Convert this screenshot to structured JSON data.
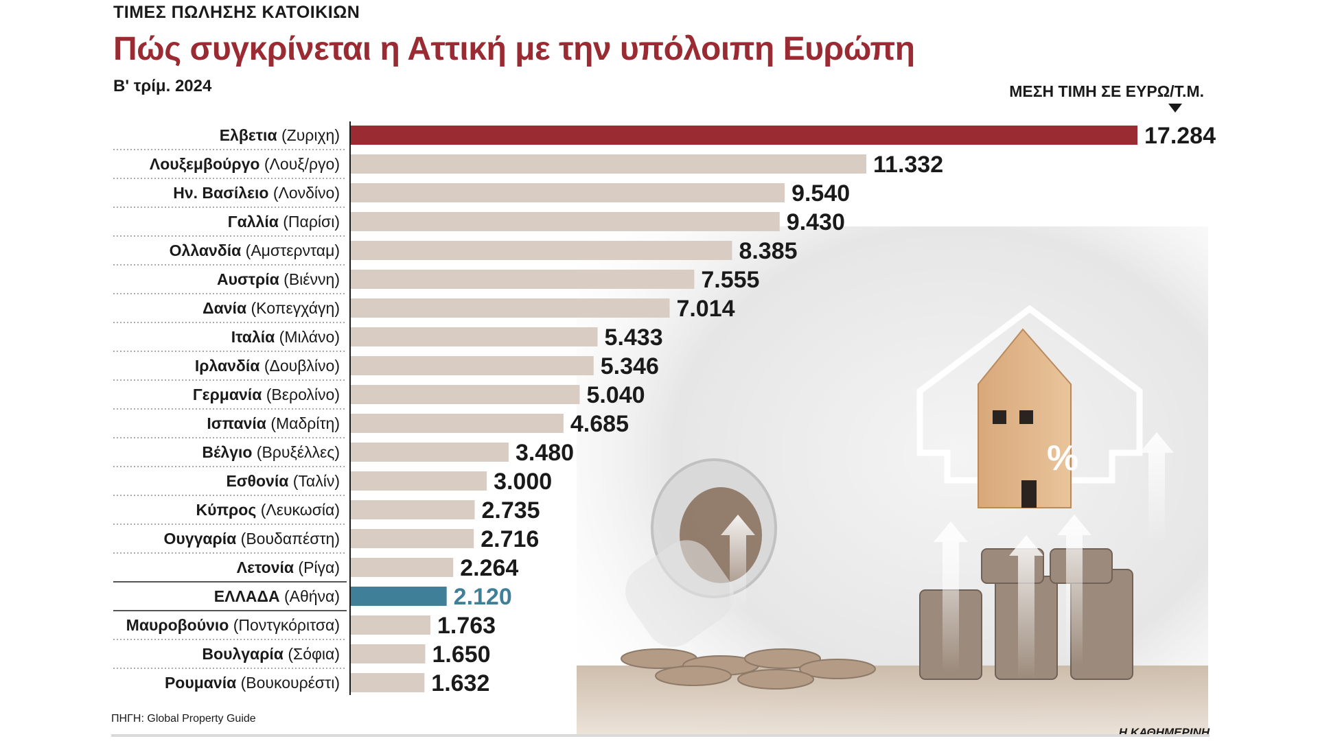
{
  "header": {
    "kicker": "ΤΙΜΕΣ ΠΩΛΗΣΗΣ ΚΑΤΟΙΚΙΩΝ",
    "title": "Πώς συγκρίνεται η Αττική με την υπόλοιπη Ευρώπη",
    "subtitle": "Β' τρίμ. 2024",
    "unit_label": "ΜΕΣΗ ΤΙΜΗ ΣΕ ΕΥΡΩ/Τ.Μ."
  },
  "footer": {
    "source": "ΠΗΓΗ: Global Property Guide",
    "brand": "Η ΚΑΘΗΜΕΡΙΝΗ"
  },
  "colors": {
    "title": "#9a2b32",
    "bar_default": "#d9cdc3",
    "bar_top": "#9a2b32",
    "bar_greece": "#3f7f98",
    "value_greece": "#3f7f98"
  },
  "chart_data": {
    "type": "bar",
    "orientation": "horizontal",
    "title": "Πώς συγκρίνεται η Αττική με την υπόλοιπη Ευρώπη",
    "unit": "ΜΕΣΗ ΤΙΜΗ ΣΕ ΕΥΡΩ/Τ.Μ.",
    "xlim": [
      0,
      17284
    ],
    "grid": false,
    "categories": [
      {
        "country": "Ελβετια",
        "city": "(Ζυριχη)"
      },
      {
        "country": "Λουξεμβούργο",
        "city": "(Λουξ/ργο)"
      },
      {
        "country": "Ην. Βασίλειο",
        "city": "(Λονδίνο)"
      },
      {
        "country": "Γαλλία",
        "city": "(Παρίσι)"
      },
      {
        "country": "Ολλανδία",
        "city": "(Αμστερνταμ)"
      },
      {
        "country": "Αυστρία",
        "city": "(Βιέννη)"
      },
      {
        "country": "Δανία",
        "city": "(Κοπεγχάγη)"
      },
      {
        "country": "Ιταλία",
        "city": "(Μιλάνο)"
      },
      {
        "country": "Ιρλανδία",
        "city": "(Δουβλίνο)"
      },
      {
        "country": "Γερμανία",
        "city": "(Βερολίνο)"
      },
      {
        "country": "Ισπανία",
        "city": "(Μαδρίτη)"
      },
      {
        "country": "Βέλγιο",
        "city": "(Βρυξέλλες)"
      },
      {
        "country": "Εσθονία",
        "city": "(Ταλίν)"
      },
      {
        "country": "Κύπρος",
        "city": "(Λευκωσία)"
      },
      {
        "country": "Ουγγαρία",
        "city": "(Βουδαπέστη)"
      },
      {
        "country": "Λετονία",
        "city": "(Ρίγα)"
      },
      {
        "country": "ΕΛΛΑΔΑ",
        "city": "(Αθήνα)"
      },
      {
        "country": "Μαυροβούνιο",
        "city": "(Ποντγκόριτσα)"
      },
      {
        "country": "Βουλγαρία",
        "city": "(Σόφια)"
      },
      {
        "country": "Ρουμανία",
        "city": "(Βουκουρέστι)"
      }
    ],
    "values": [
      17284,
      11332,
      9540,
      9430,
      8385,
      7555,
      7014,
      5433,
      5346,
      5040,
      4685,
      3480,
      3000,
      2735,
      2716,
      2264,
      2120,
      1763,
      1650,
      1632
    ],
    "value_labels": [
      "17.284",
      "11.332",
      "9.540",
      "9.430",
      "8.385",
      "7.555",
      "7.014",
      "5.433",
      "5.346",
      "5.040",
      "4.685",
      "3.480",
      "3.000",
      "2.735",
      "2.716",
      "2.264",
      "2.120",
      "1.763",
      "1.650",
      "1.632"
    ],
    "highlight": {
      "top": 0,
      "greece": 16
    }
  }
}
